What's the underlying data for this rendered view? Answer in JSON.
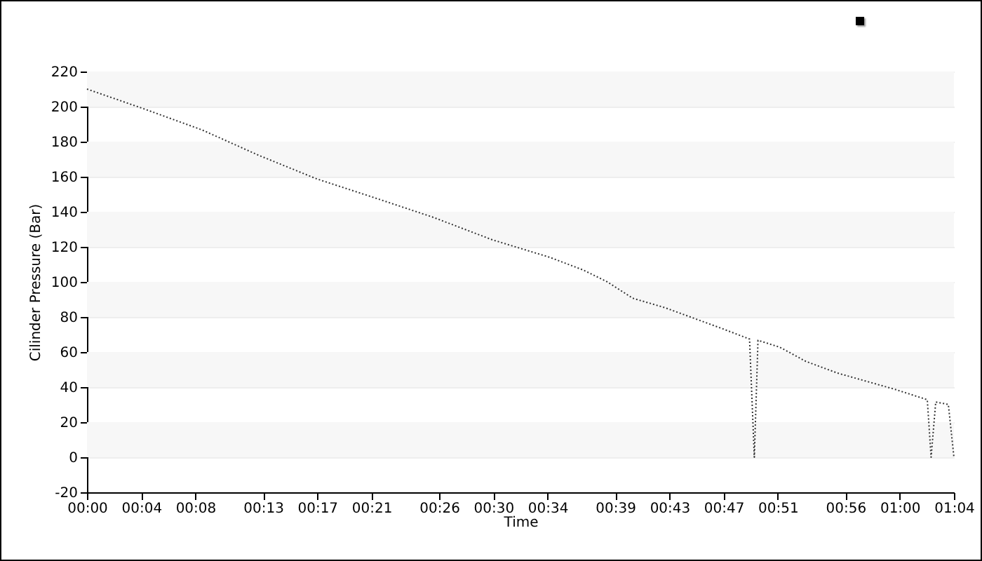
{
  "chart_data": {
    "type": "line",
    "xlabel": "Time",
    "ylabel": "Cilinder Pressure (Bar)",
    "x": [
      0,
      0.0708,
      0.1415,
      0.2123,
      0.2831,
      0.3538,
      0.4263,
      0.4988,
      0.5696,
      0.611,
      0.6403,
      0.6714,
      0.7111,
      0.7819,
      0.8152,
      0.8211,
      0.8256,
      0.8527,
      0.8843,
      0.9234,
      0.9942,
      1.0339,
      1.0386,
      1.0443,
      1.0598,
      1.0667
    ],
    "series": [
      {
        "color": "#333333",
        "values": [
          210,
          198.6,
          186.7,
          172,
          158.7,
          148,
          136.8,
          124,
          114,
          106.7,
          100,
          90.7,
          85.3,
          73.3,
          67.4,
          0,
          66.7,
          62.7,
          54.7,
          48,
          38.7,
          32.8,
          0,
          31.5,
          30.1,
          0
        ]
      }
    ],
    "xlim": [
      0,
      1.0667
    ],
    "xticks": [
      {
        "value": 0,
        "label": "00:00"
      },
      {
        "value": 0.0667,
        "label": "00:04"
      },
      {
        "value": 0.1333,
        "label": "00:08"
      },
      {
        "value": 0.2167,
        "label": "00:13"
      },
      {
        "value": 0.2833,
        "label": "00:17"
      },
      {
        "value": 0.35,
        "label": "00:21"
      },
      {
        "value": 0.4333,
        "label": "00:26"
      },
      {
        "value": 0.5,
        "label": "00:30"
      },
      {
        "value": 0.5667,
        "label": "00:34"
      },
      {
        "value": 0.65,
        "label": "00:39"
      },
      {
        "value": 0.7167,
        "label": "00:43"
      },
      {
        "value": 0.7833,
        "label": "00:47"
      },
      {
        "value": 0.85,
        "label": "00:51"
      },
      {
        "value": 0.9333,
        "label": "00:56"
      },
      {
        "value": 1,
        "label": "01:00"
      },
      {
        "value": 1.0667,
        "label": "01:04"
      }
    ],
    "ylim": [
      -20,
      220
    ],
    "yticks": [
      -20,
      0,
      20,
      40,
      60,
      80,
      100,
      120,
      140,
      160,
      180,
      200,
      220
    ],
    "grid": "y",
    "line_style": "dotted",
    "marker": "none"
  }
}
